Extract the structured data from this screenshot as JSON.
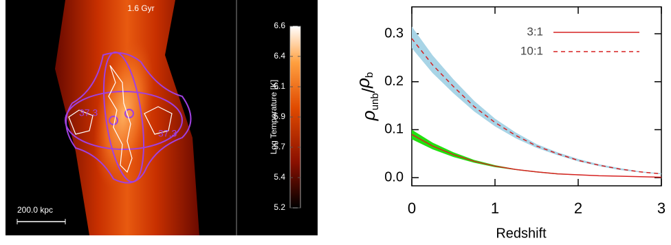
{
  "chart_data": [
    {
      "type": "image",
      "title": "1.6 Gyr",
      "scale_label": "200.0 kpc",
      "annotations": [
        "37.3",
        "37.3"
      ],
      "colorbar": {
        "label": "Log Temperature [K]",
        "lim": [
          5.2,
          6.6
        ],
        "ticks": [
          {
            "value": 5.2,
            "label": "5.2"
          },
          {
            "value": 5.433,
            "label": "5.4"
          },
          {
            "value": 5.667,
            "label": "5.7"
          },
          {
            "value": 5.9,
            "label": "5.9"
          },
          {
            "value": 6.133,
            "label": "6.1"
          },
          {
            "value": 6.367,
            "label": "6.4"
          },
          {
            "value": 6.6,
            "label": "6.6"
          }
        ]
      }
    },
    {
      "type": "line",
      "ylabel_parts": [
        "ρ",
        "unb",
        "/",
        "ρ",
        "b"
      ],
      "xlabel": "Redshift",
      "x": [
        0,
        0.25,
        0.5,
        0.75,
        1,
        1.25,
        1.5,
        1.75,
        2,
        2.25,
        2.5,
        2.75,
        3
      ],
      "xlim": [
        0,
        3
      ],
      "xticks": [
        0,
        1,
        2,
        3
      ],
      "ylim": [
        -0.017,
        0.356
      ],
      "yticks": [
        {
          "value": 0,
          "label": "0.0"
        },
        0.1,
        0.2,
        0.3
      ],
      "series": [
        {
          "name": "3:1",
          "color": "#d62020",
          "dash": false,
          "band_color": "#22e010",
          "values": [
            0.09,
            0.066,
            0.048,
            0.034,
            0.024,
            0.017,
            0.012,
            0.008,
            0.006,
            0.004,
            0.003,
            0.002,
            0.001
          ],
          "upper": [
            0.1,
            0.073,
            0.053,
            0.037,
            0.026,
            0.018,
            0.013,
            0.009,
            0.006,
            0.004,
            0.003,
            0.002,
            0.001
          ],
          "lower": [
            0.08,
            0.059,
            0.043,
            0.031,
            0.022,
            0.016,
            0.011,
            0.007,
            0.005,
            0.004,
            0.003,
            0.002,
            0.001
          ]
        },
        {
          "name": "10:1",
          "color": "#d62020",
          "dash": true,
          "band_color": "#a8d4e6",
          "values": [
            0.29,
            0.235,
            0.19,
            0.148,
            0.115,
            0.088,
            0.066,
            0.05,
            0.036,
            0.026,
            0.018,
            0.012,
            0.008
          ],
          "upper": [
            0.315,
            0.255,
            0.205,
            0.16,
            0.123,
            0.094,
            0.07,
            0.053,
            0.039,
            0.028,
            0.02,
            0.013,
            0.009
          ],
          "lower": [
            0.27,
            0.218,
            0.176,
            0.138,
            0.107,
            0.082,
            0.062,
            0.047,
            0.034,
            0.024,
            0.016,
            0.011,
            0.007
          ]
        }
      ]
    }
  ]
}
